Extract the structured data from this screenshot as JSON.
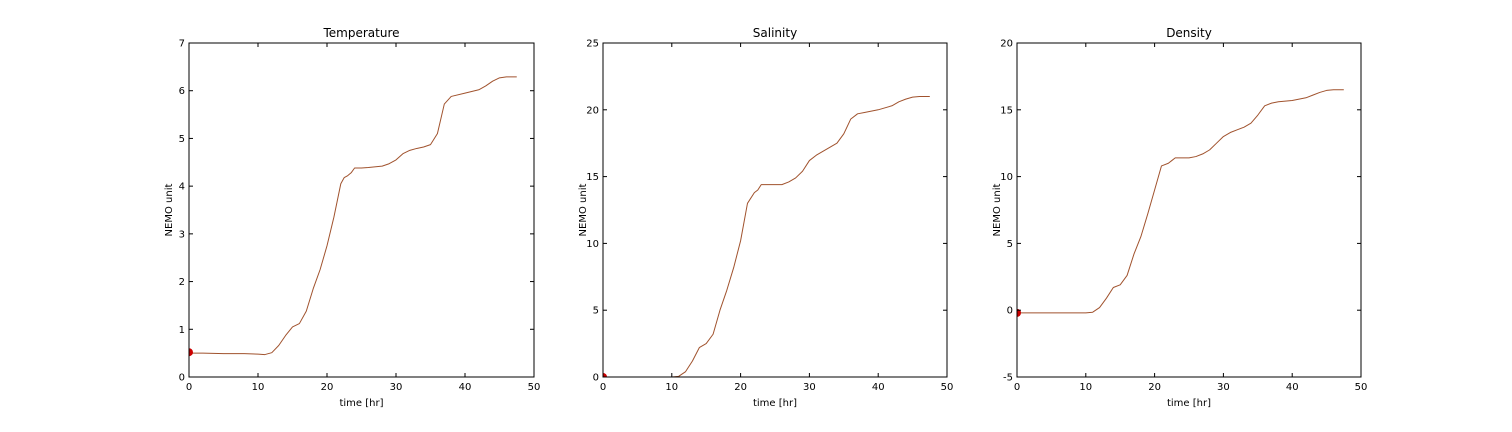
{
  "colors": {
    "line": "#a0522d",
    "marker": "#cc0000",
    "axes": "#000000",
    "background": "#ffffff"
  },
  "chart_data": [
    {
      "type": "line",
      "title": "Temperature",
      "xlabel": "time [hr]",
      "ylabel": "NEMO unit",
      "xlim": [
        0,
        50
      ],
      "ylim": [
        0,
        7
      ],
      "xticks": [
        0,
        10,
        20,
        30,
        40,
        50
      ],
      "yticks": [
        0,
        1,
        2,
        3,
        4,
        5,
        6,
        7
      ],
      "grid": false,
      "series": [
        {
          "x": [
            0,
            2,
            5,
            8,
            10,
            11,
            12,
            13,
            14,
            15,
            16,
            17,
            18,
            19,
            20,
            21,
            22,
            22.5,
            23,
            23.5,
            24,
            25,
            26,
            28,
            29,
            30,
            31,
            32,
            33,
            34,
            35,
            36,
            37,
            38,
            40,
            42,
            43,
            44,
            45,
            46,
            47.5
          ],
          "y": [
            0.5,
            0.5,
            0.49,
            0.49,
            0.48,
            0.47,
            0.51,
            0.66,
            0.87,
            1.05,
            1.12,
            1.38,
            1.85,
            2.25,
            2.75,
            3.35,
            4.05,
            4.18,
            4.22,
            4.28,
            4.38,
            4.38,
            4.39,
            4.42,
            4.47,
            4.55,
            4.68,
            4.75,
            4.79,
            4.82,
            4.87,
            5.1,
            5.72,
            5.88,
            5.95,
            6.02,
            6.1,
            6.2,
            6.27,
            6.29,
            6.29
          ]
        }
      ],
      "marker": {
        "x": 0,
        "y": 0.52
      }
    },
    {
      "type": "line",
      "title": "Salinity",
      "xlabel": "time [hr]",
      "ylabel": "NEMO unit",
      "xlim": [
        0,
        50
      ],
      "ylim": [
        0,
        25
      ],
      "xticks": [
        0,
        10,
        20,
        30,
        40,
        50
      ],
      "yticks": [
        0,
        5,
        10,
        15,
        20,
        25
      ],
      "grid": false,
      "series": [
        {
          "x": [
            0,
            5,
            10,
            11,
            12,
            13,
            14,
            15,
            16,
            17,
            18,
            19,
            20,
            21,
            22,
            22.5,
            23,
            24,
            25,
            26,
            27,
            28,
            29,
            30,
            31,
            32,
            33,
            34,
            35,
            36,
            37,
            38,
            40,
            42,
            43,
            44,
            45,
            46,
            47.5
          ],
          "y": [
            0,
            0,
            0,
            0.05,
            0.4,
            1.2,
            2.2,
            2.5,
            3.2,
            5.0,
            6.5,
            8.2,
            10.2,
            13.0,
            13.8,
            14.0,
            14.4,
            14.4,
            14.4,
            14.4,
            14.6,
            14.9,
            15.4,
            16.2,
            16.6,
            16.9,
            17.2,
            17.5,
            18.2,
            19.3,
            19.7,
            19.8,
            20.0,
            20.3,
            20.6,
            20.8,
            20.95,
            21.0,
            21.0
          ]
        }
      ],
      "marker": {
        "x": 0,
        "y": 0
      }
    },
    {
      "type": "line",
      "title": "Density",
      "xlabel": "time [hr]",
      "ylabel": "NEMO unit",
      "xlim": [
        0,
        50
      ],
      "ylim": [
        -5,
        20
      ],
      "xticks": [
        0,
        10,
        20,
        30,
        40,
        50
      ],
      "yticks": [
        -5,
        0,
        5,
        10,
        15,
        20
      ],
      "grid": false,
      "series": [
        {
          "x": [
            0,
            5,
            10,
            11,
            12,
            13,
            14,
            15,
            16,
            17,
            18,
            19,
            20,
            21,
            22,
            22.5,
            23,
            24,
            25,
            26,
            27,
            28,
            29,
            30,
            31,
            32,
            33,
            34,
            35,
            36,
            37,
            38,
            40,
            42,
            43,
            44,
            45,
            46,
            47.5
          ],
          "y": [
            -0.2,
            -0.2,
            -0.2,
            -0.15,
            0.2,
            0.9,
            1.7,
            1.9,
            2.6,
            4.2,
            5.5,
            7.2,
            9.0,
            10.8,
            11.0,
            11.2,
            11.4,
            11.4,
            11.4,
            11.5,
            11.7,
            12.0,
            12.5,
            13.0,
            13.3,
            13.5,
            13.7,
            14.0,
            14.6,
            15.3,
            15.5,
            15.6,
            15.7,
            15.9,
            16.1,
            16.3,
            16.45,
            16.5,
            16.5
          ]
        }
      ],
      "marker": {
        "x": 0,
        "y": -0.2
      }
    }
  ]
}
